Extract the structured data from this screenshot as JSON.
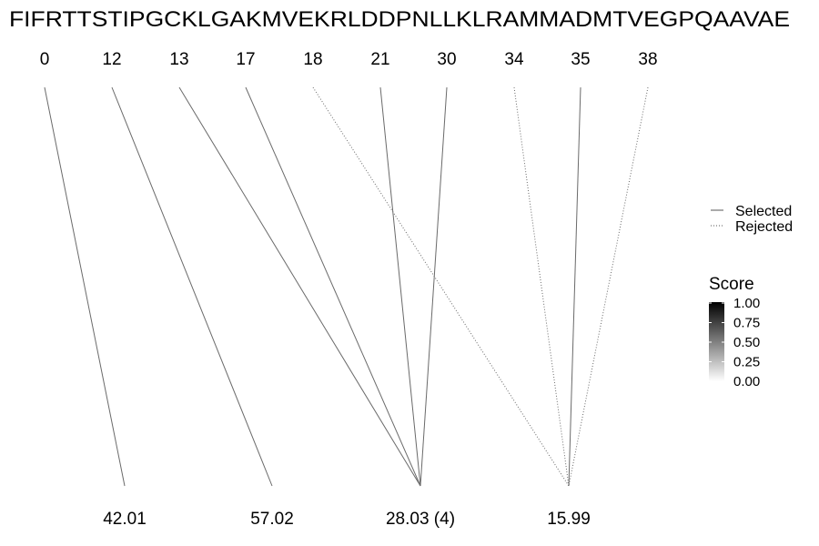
{
  "sequence": "FIFRTTSTIPGCKLGAKMVEKRLDDPNLLKLRAMMADMTVEGPQAAVAE",
  "top_positions": [
    "0",
    "12",
    "13",
    "17",
    "18",
    "21",
    "30",
    "34",
    "35",
    "38"
  ],
  "bottom_values": [
    "42.01",
    "57.02",
    "28.03 (4)",
    "15.99"
  ],
  "legend": {
    "line_types": [
      {
        "label": "Selected",
        "style": "solid"
      },
      {
        "label": "Rejected",
        "style": "dotted"
      }
    ],
    "score_title": "Score",
    "score_ticks": [
      "1.00",
      "0.75",
      "0.50",
      "0.25",
      "0.00"
    ],
    "score_colors": {
      "high": "#000000",
      "low": "#ffffff"
    }
  },
  "links": [
    {
      "top": 0,
      "bottom": 0,
      "status": "selected"
    },
    {
      "top": 1,
      "bottom": 1,
      "status": "selected"
    },
    {
      "top": 2,
      "bottom": 2,
      "status": "selected"
    },
    {
      "top": 3,
      "bottom": 2,
      "status": "selected"
    },
    {
      "top": 4,
      "bottom": 3,
      "status": "rejected"
    },
    {
      "top": 5,
      "bottom": 2,
      "status": "selected"
    },
    {
      "top": 6,
      "bottom": 2,
      "status": "selected"
    },
    {
      "top": 7,
      "bottom": 3,
      "status": "rejected"
    },
    {
      "top": 8,
      "bottom": 3,
      "status": "selected"
    },
    {
      "top": 9,
      "bottom": 3,
      "status": "rejected"
    }
  ]
}
